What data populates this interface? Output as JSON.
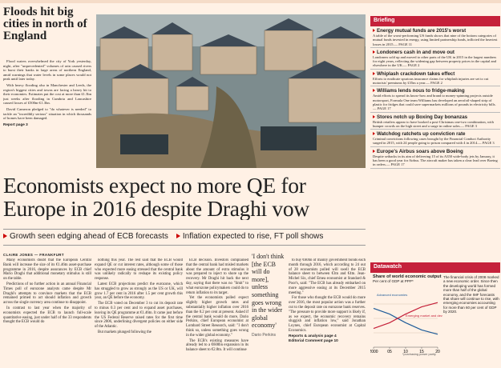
{
  "flood": {
    "headline": "Floods hit big cities in north of England",
    "body": [
      "Flood waters overwhelmed the city of York yesterday, night, after \"unprecedented\" volumes of rain caused rivers to burst their banks in large areas of northern England, amid warnings that water levels in some places would not peak until later today.",
      "With heavy flooding also in Manchester and Leeds, the region's biggest cities and towns are facing a heavy hit to their economies. Estimates put the cost at more than £1.3bn just weeks after flooding in Cumbria and Lancashire caused losses of £500m-£1.3bn.",
      "David Cameron pledged to \"do whatever is needed\" to tackle an \"incredibly serious\" situation in which thousands of homes have been damaged."
    ],
    "ref": "Report page 3"
  },
  "lead": {
    "headline": "Economists expect no more QE for Europe in 2016 despite Draghi vow",
    "subheads": [
      "Growth seen edging ahead of ECB forecasts",
      "Inflation expected to rise, FT poll shows"
    ],
    "byline": "CLAIRE JONES — FRANKFURT",
    "columns": [
      [
        "Many economists doubt that the European Central Bank will increase the size of its €1.46tn asset-purchase programme in 2016, despite assurances by ECB chief Mario Draghi that additional monetary stimulus is still on the table.",
        "Predictions of no further action in an annual Financial Times poll of eurozone analysts came despite Mr Draghi's attempts to convince markets that the ECB remained primed to act should inflation and growth across the single currency area continue to disappoint.",
        "In contrast to last year when the majority of economists expected the ECB to launch full-scale quantitative easing, just under half of the 33 respondents thought the ECB would do"
      ],
      [
        "nothing this year. The rest said that the ECB would expand QE or cut interest rates, although some of those who expected more easing stressed that the central bank was unlikely radically to reshape its existing policy response.",
        "Latest ECB projections predict the eurozone, which has struggled to grow as strongly as the US or UK, will grow 1.7 per cent in 2016 after 1.5 per cent growth this year, an QE before the economy.",
        "The ECB voted on December 3 to cut its deposit rate to minus 0.3 per cent and to expand asset purchases, leaving its QE programme at €1.46tn. It came just before the US Federal Reserve raised rates for the first time since 2006, underlining divergent policies on either side of the Atlantic.",
        "But markets plunged following the"
      ],
      [
        "ECB decision. Investors complained that the central bank had misled markets about the amount of extra stimulus it was prepared to inject to shore up the recovery. Mr Draghi hit back the next day, saying that there was no \"limit\" to what eurozone policymakers could do to return inflation to its target.",
        "Yet the economists polled expect slightly higher growth rates and substantially higher inflation over 2016 than the 0.2 per cent at present. Asked if the central bank would do more, Dario Perkins, chief European economist at Lombard Street Research, said: \"I don't think so, unless something goes wrong in the wider global economy.\"",
        "The ECB's existing measures have already led to a €600bn expansion in its balance sheet to €2.8tn. It will continue"
      ],
      [
        "to buy €60bn of mainly government bonds each month through 2016, which according to 24 out of 28 economists polled will swell the ECB balance sheet to between €3tn and €4tn. Jean-Michel Six, chief Emea economist at Standard & Poor's, said: \"The ECB has already embarked on more aggressive easing at its December 2015 meeting.\"",
        "For those who thought the ECB would do more over 2016, the most popular action was a further cut to the deposit rate on eurozone bank reserves. \"The pressure to provide more support is likely if, as we expect, the economic recovery remains sluggish and inflation low,\" said Jonathan Loynes, chief European economist at Capital Economics."
      ]
    ],
    "quote": "'I don't think [the ECB will do more], unless something goes wrong in the wider global economy'",
    "quote_source": "Dario Perkins",
    "refs": [
      "Reports & analysis page 4",
      "Editorial Comment page 10"
    ]
  },
  "briefing": {
    "title": "Briefing",
    "items": [
      {
        "headline": "Energy mutual funds are 2015's worst",
        "body": "A table of the worst-performing US funds shows that nine of the bottom categories of mutual funds invested in energy, using limited partnership funds, inflicted the heaviest losses in 2015.— PAGE 11"
      },
      {
        "headline": "Londoners cash in and move out",
        "body": "Londoners sold up and moved to other parts of the UK in 2015 in the largest numbers for eight years, reflecting the widening gap between property prices in the capital and elsewhere in the UK.— PAGE 2"
      },
      {
        "headline": "Whiplash crackdown takes effect",
        "body": "Efforts to eradicate spurious insurance claims for whiplash injuries are set to cut motorists' premiums by £35m a year.— PAGE 2"
      },
      {
        "headline": "Williams lends nous to fridge-making",
        "body": "Amid efforts to spread its know-how and brand to money-spinning projects outside motorsport, Formula One team Williams has developed an aerofoil-shaped strip of plastic for fridges that could save supermarkets millions of pounds in electricity bills.— PAGE 17"
      },
      {
        "headline": "Stores notch up Boxing Day bonanzas",
        "body": "British retailers appear to have booked a post-Christmas one-two combination, with bumper crowds on the high street and a surge in online sales.— PAGE 3"
      },
      {
        "headline": "Watchdog ratchets up conviction rate",
        "body": "Criminal convictions following cases brought by the Financial Conduct Authority surged in 2015, with 24 people going to prison compared with 4 in 2014.— PAGE 3"
      },
      {
        "headline": "Europe's Airbus soars above Boeing",
        "body": "Despite setbacks in its aim of delivering 15 of its A350 wide-body jets by January, it has been a good year for Airbus. The aircraft maker has taken a clear lead over Boeing in orders.— PAGE 17"
      }
    ]
  },
  "datawatch": {
    "title": "Datawatch",
    "chart": {
      "title": "Share of world economic output",
      "subtitle": "Per cent of GDP at PPP*",
      "x": [
        2000,
        2005,
        2010,
        2015,
        2020
      ],
      "xticks": [
        2000,
        {
          "value": 2005,
          "label": "05"
        },
        {
          "value": 2010,
          "label": "10"
        },
        {
          "value": 2015,
          "label": "15"
        },
        {
          "value": 2020,
          "label": "20"
        }
      ],
      "xlim": [
        2000,
        2020
      ],
      "ylim": [
        30,
        70
      ],
      "yticks": [
        40,
        50,
        60
      ],
      "series": [
        {
          "name": "Advanced economies",
          "color": "#1f5c99",
          "values": [
            57,
            53,
            47,
            42,
            39
          ]
        },
        {
          "name": "Emerging market and developing economies",
          "color": "#c5213a",
          "values": [
            43,
            47,
            53,
            58,
            61
          ]
        }
      ],
      "note": "*purchasing power parity"
    },
    "note": "The financial crisis of 2008 marked a new economic order. Since then the developing world has formed more than half of the global economy, and the IMF forecasts that share will continue to rise, with emerging economies accounting for more than 60 per cent of GDP by 2020."
  }
}
